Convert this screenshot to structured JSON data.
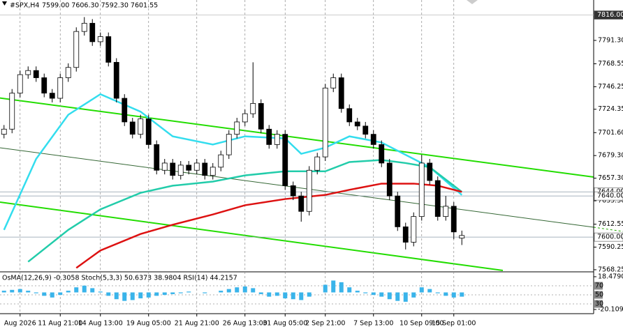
{
  "chart_data": {
    "type": "candlestick",
    "symbol": "#SPX,H4",
    "ohlc_text": "7599.00 7606.30 7592.30 7601.55",
    "categories": [
      null,
      null,
      "Aug 2026",
      null,
      null,
      null,
      null,
      "11 Aug 21:00",
      null,
      null,
      null,
      null,
      "14 Aug 13:00",
      null,
      null,
      null,
      null,
      null,
      "19 Aug 05:00",
      null,
      null,
      null,
      null,
      null,
      "21 Aug 21:00",
      null,
      null,
      null,
      null,
      null,
      "26 Aug 13:00",
      null,
      null,
      null,
      null,
      "31 Aug 05:00",
      null,
      null,
      null,
      null,
      "2 Sep 21:00",
      null,
      null,
      null,
      null,
      null,
      "7 Sep 13:00",
      null,
      null,
      null,
      null,
      null,
      "10 Sep 09:00",
      null,
      null,
      null,
      "15 Sep 01:00",
      null
    ],
    "open": [
      7700,
      7705,
      7740,
      7758,
      7762,
      7755,
      7740,
      7735,
      7755,
      7765,
      7800,
      7808,
      7790,
      7795,
      7770,
      7735,
      7712,
      7700,
      7715,
      7690,
      7665,
      7672,
      7660,
      7670,
      7665,
      7672,
      7660,
      7668,
      7680,
      7700,
      7712,
      7720,
      7730,
      7705,
      7690,
      7700,
      7650,
      7640,
      7625,
      7665,
      7678,
      7745,
      7755,
      7725,
      7712,
      7708,
      7700,
      7690,
      7672,
      7640,
      7610,
      7595,
      7620,
      7672,
      7655,
      7620,
      7630,
      7599
    ],
    "high": [
      7709,
      7744,
      7762,
      7766,
      7766,
      7759,
      7744,
      7759,
      7769,
      7804,
      7814,
      7812,
      7799,
      7799,
      7774,
      7739,
      7716,
      7719,
      7719,
      7694,
      7676,
      7676,
      7674,
      7674,
      7676,
      7676,
      7672,
      7684,
      7704,
      7716,
      7724,
      7770,
      7734,
      7709,
      7704,
      7704,
      7654,
      7644,
      7669,
      7682,
      7749,
      7759,
      7759,
      7729,
      7716,
      7712,
      7704,
      7694,
      7676,
      7644,
      7614,
      7624,
      7680,
      7676,
      7659,
      7640,
      7634,
      7606.3
    ],
    "low": [
      7696,
      7701,
      7736,
      7754,
      7751,
      7736,
      7731,
      7731,
      7751,
      7761,
      7796,
      7786,
      7786,
      7766,
      7731,
      7708,
      7696,
      7696,
      7686,
      7661,
      7661,
      7656,
      7656,
      7661,
      7661,
      7656,
      7656,
      7664,
      7676,
      7696,
      7708,
      7716,
      7701,
      7686,
      7686,
      7646,
      7636,
      7615,
      7621,
      7661,
      7674,
      7741,
      7721,
      7708,
      7704,
      7696,
      7686,
      7668,
      7636,
      7606,
      7588,
      7591,
      7616,
      7651,
      7616,
      7616,
      7598,
      7592.3
    ],
    "close": [
      7705,
      7740,
      7758,
      7762,
      7755,
      7740,
      7735,
      7755,
      7765,
      7800,
      7808,
      7790,
      7795,
      7770,
      7735,
      7712,
      7700,
      7715,
      7690,
      7665,
      7672,
      7660,
      7670,
      7665,
      7672,
      7660,
      7668,
      7680,
      7700,
      7712,
      7720,
      7730,
      7705,
      7690,
      7700,
      7650,
      7640,
      7625,
      7665,
      7678,
      7745,
      7755,
      7725,
      7712,
      7708,
      7700,
      7690,
      7672,
      7640,
      7610,
      7595,
      7620,
      7672,
      7655,
      7620,
      7630,
      7605,
      7601.55
    ],
    "color_up": "#ffffff",
    "color_down": "#000000",
    "ylim": [
      7566.2,
      7830.6
    ],
    "yticks": [
      {
        "value": 7791.3,
        "label": "7791.30"
      },
      {
        "value": 7768.55,
        "label": "7768.55"
      },
      {
        "value": 7746.25,
        "label": "7746.25"
      },
      {
        "value": 7724.35,
        "label": "7724.35"
      },
      {
        "value": 7701.6,
        "label": "7701.60"
      },
      {
        "value": 7679.3,
        "label": "7679.30"
      },
      {
        "value": 7657.3,
        "label": "7657.30"
      },
      {
        "value": 7635.3,
        "label": "7635.30"
      },
      {
        "value": 7612.55,
        "label": "7612.55"
      },
      {
        "value": 7590.25,
        "label": "7590.25"
      },
      {
        "value": 7568.25,
        "label": "7568.25"
      }
    ],
    "price_levels": [
      {
        "value": 7816,
        "label": "7816.00"
      },
      {
        "value": 7644,
        "label": "7644.00"
      },
      {
        "value": 7640,
        "label": "7640.00"
      },
      {
        "value": 7600,
        "label": "7600.00"
      }
    ],
    "overlays": [
      {
        "color": "#33ddee",
        "x": [
          0,
          4,
          8,
          12,
          17,
          21,
          26,
          30,
          35,
          37,
          40,
          43,
          47,
          50,
          53,
          57
        ],
        "values": [
          7607,
          7676,
          7719,
          7739,
          7722,
          7698,
          7690,
          7698,
          7696,
          7681,
          7687,
          7698,
          7692,
          7680,
          7668,
          7641
        ]
      },
      {
        "color": "#22ccaa",
        "x": [
          3,
          8,
          12,
          17,
          21,
          26,
          30,
          35,
          40,
          43,
          47,
          50,
          53,
          57
        ],
        "values": [
          7576,
          7607,
          7627,
          7643,
          7650,
          7654,
          7660,
          7664,
          7664,
          7673,
          7675,
          7672,
          7668,
          7644
        ]
      },
      {
        "color": "#dd1111",
        "x": [
          9,
          12,
          17,
          21,
          26,
          30,
          35,
          40,
          43,
          47,
          51,
          54,
          57
        ],
        "values": [
          7570,
          7587,
          7603,
          7612,
          7622,
          7631,
          7637,
          7641,
          7646,
          7652,
          7652,
          7650,
          7644
        ]
      }
    ],
    "indicator": {
      "type": "bar",
      "label": "OsMA(12,26,9) -0.3058  Stoch(5,3,3) 50.6373 38.9804  RSI(14) 44.2157",
      "color": "#3ab4ea",
      "values": [
        2,
        3,
        4,
        2,
        -1,
        -4,
        -6,
        -3,
        2,
        6,
        8,
        5,
        1,
        -4,
        -8,
        -10,
        -9,
        -7,
        -6,
        -4,
        -3,
        -2,
        -1,
        1,
        0,
        -1,
        0,
        2,
        4,
        6,
        7,
        5,
        -2,
        -5,
        -4,
        -7,
        -8,
        -9,
        -5,
        0,
        9,
        14,
        12,
        6,
        2,
        -1,
        -3,
        -5,
        -8,
        -10,
        -11,
        -6,
        6,
        4,
        -1,
        -4,
        -6,
        -5
      ],
      "ylim": [
        -20.1097,
        18.479
      ],
      "yticks": [
        {
          "value": 18.479,
          "label": "18.4790"
        },
        {
          "value": -20.1097,
          "label": "-20.1097"
        }
      ],
      "y2lim": [
        0,
        100
      ],
      "y2ticks": [
        30,
        50,
        70
      ]
    }
  }
}
